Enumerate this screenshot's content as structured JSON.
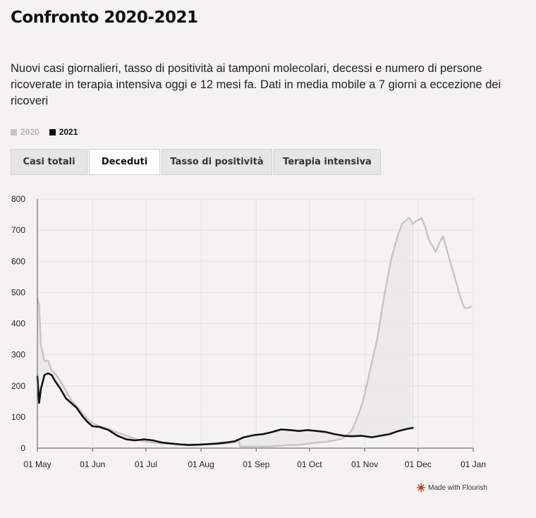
{
  "title": "Confronto 2020-2021",
  "subtitle": "Nuovi casi giornalieri, tasso di positività ai tamponi molecolari, decessi e numero di persone ricoverate in terapia intensiva oggi e 12 mesi fa. Dati in media mobile a 7 giorni a eccezione dei ricoveri",
  "legend": [
    {
      "label": "2020",
      "color": "#c9c3c3"
    },
    {
      "label": "2021",
      "color": "#111111"
    }
  ],
  "tabs": [
    {
      "label": "Casi totali",
      "active": false
    },
    {
      "label": "Deceduti",
      "active": true
    },
    {
      "label": "Tasso di positività",
      "active": false
    },
    {
      "label": "Terapia intensiva",
      "active": false
    }
  ],
  "footer": {
    "credit": "Made with Flourish"
  },
  "chart_data": {
    "type": "line",
    "x_ticks": [
      "01 May",
      "01 Jun",
      "01 Jul",
      "01 Aug",
      "01 Sep",
      "01 Oct",
      "01 Nov",
      "01 Dec",
      "01 Jan"
    ],
    "y_ticks": [
      0,
      100,
      200,
      300,
      400,
      500,
      600,
      700,
      800
    ],
    "ylim": [
      0,
      800
    ],
    "xlim": [
      "2021-05-01",
      "2022-01-01"
    ],
    "grid": true,
    "shaded_area_between_series": true,
    "series": [
      {
        "name": "2020",
        "color": "#c9c3c3",
        "x": [
          "2021-05-01",
          "2021-05-02",
          "2021-05-03",
          "2021-05-05",
          "2021-05-07",
          "2021-05-09",
          "2021-05-11",
          "2021-05-14",
          "2021-05-17",
          "2021-05-20",
          "2021-05-23",
          "2021-05-26",
          "2021-05-29",
          "2021-06-01",
          "2021-06-05",
          "2021-06-10",
          "2021-06-15",
          "2021-06-20",
          "2021-06-25",
          "2021-06-30",
          "2021-07-05",
          "2021-07-10",
          "2021-07-15",
          "2021-07-20",
          "2021-07-25",
          "2021-07-31",
          "2021-08-05",
          "2021-08-10",
          "2021-08-15",
          "2021-08-20",
          "2021-08-22",
          "2021-08-23",
          "2021-08-25",
          "2021-08-31",
          "2021-09-05",
          "2021-09-10",
          "2021-09-15",
          "2021-09-20",
          "2021-09-25",
          "2021-09-30",
          "2021-10-05",
          "2021-10-10",
          "2021-10-15",
          "2021-10-19",
          "2021-10-22",
          "2021-10-25",
          "2021-10-28",
          "2021-10-31",
          "2021-11-02",
          "2021-11-04",
          "2021-11-06",
          "2021-11-08",
          "2021-11-10",
          "2021-11-12",
          "2021-11-14",
          "2021-11-16",
          "2021-11-18",
          "2021-11-20",
          "2021-11-22",
          "2021-11-24",
          "2021-11-26",
          "2021-11-28",
          "2021-11-30",
          "2021-12-02",
          "2021-12-03",
          "2021-12-05",
          "2021-12-07",
          "2021-12-09",
          "2021-12-11",
          "2021-12-13",
          "2021-12-15",
          "2021-12-17",
          "2021-12-19",
          "2021-12-21",
          "2021-12-23",
          "2021-12-25",
          "2021-12-27",
          "2021-12-29",
          "2021-12-31"
        ],
        "values": [
          480,
          460,
          330,
          280,
          280,
          250,
          240,
          215,
          185,
          155,
          135,
          115,
          95,
          80,
          70,
          62,
          50,
          40,
          30,
          22,
          18,
          15,
          14,
          12,
          12,
          12,
          12,
          13,
          15,
          20,
          25,
          5,
          5,
          5,
          5,
          6,
          8,
          10,
          10,
          14,
          18,
          20,
          25,
          30,
          40,
          60,
          100,
          150,
          200,
          250,
          300,
          350,
          420,
          490,
          550,
          610,
          650,
          690,
          720,
          730,
          740,
          720,
          730,
          735,
          740,
          710,
          670,
          650,
          630,
          660,
          680,
          640,
          600,
          560,
          520,
          480,
          450,
          450,
          455
        ]
      },
      {
        "name": "2021",
        "color": "#111111",
        "x": [
          "2021-05-01",
          "2021-05-02",
          "2021-05-03",
          "2021-05-05",
          "2021-05-07",
          "2021-05-09",
          "2021-05-11",
          "2021-05-14",
          "2021-05-17",
          "2021-05-20",
          "2021-05-23",
          "2021-05-26",
          "2021-05-29",
          "2021-06-01",
          "2021-06-05",
          "2021-06-10",
          "2021-06-15",
          "2021-06-20",
          "2021-06-25",
          "2021-06-30",
          "2021-07-05",
          "2021-07-10",
          "2021-07-15",
          "2021-07-20",
          "2021-07-25",
          "2021-07-31",
          "2021-08-05",
          "2021-08-10",
          "2021-08-15",
          "2021-08-20",
          "2021-08-25",
          "2021-08-31",
          "2021-09-05",
          "2021-09-10",
          "2021-09-15",
          "2021-09-20",
          "2021-09-25",
          "2021-09-30",
          "2021-10-05",
          "2021-10-10",
          "2021-10-15",
          "2021-10-20",
          "2021-10-25",
          "2021-10-30",
          "2021-11-05",
          "2021-11-10",
          "2021-11-15",
          "2021-11-20",
          "2021-11-25",
          "2021-11-28"
        ],
        "values": [
          230,
          145,
          190,
          235,
          240,
          235,
          215,
          190,
          160,
          145,
          130,
          105,
          85,
          70,
          68,
          58,
          40,
          28,
          25,
          28,
          25,
          18,
          15,
          12,
          10,
          11,
          13,
          15,
          18,
          22,
          35,
          42,
          45,
          52,
          60,
          58,
          55,
          58,
          55,
          52,
          45,
          40,
          38,
          40,
          35,
          40,
          45,
          55,
          62,
          65
        ]
      }
    ]
  }
}
